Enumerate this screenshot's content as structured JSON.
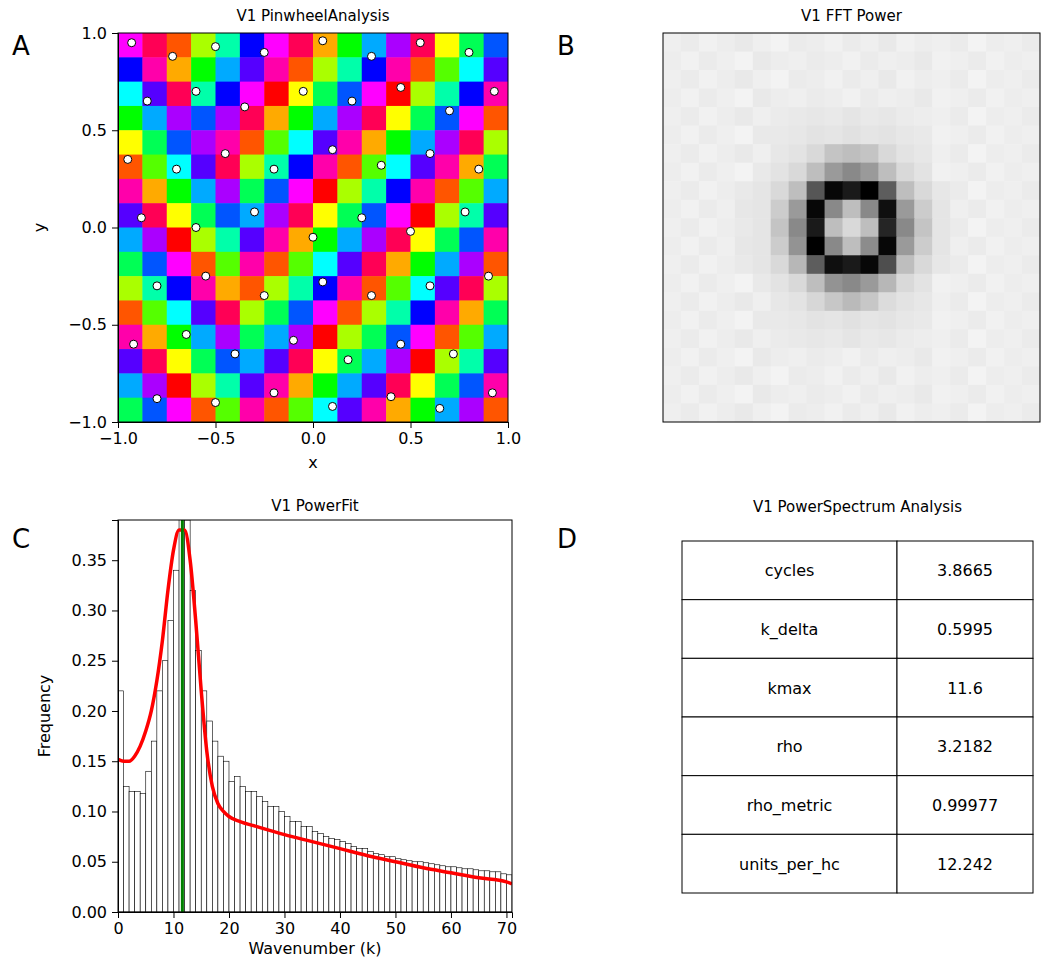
{
  "chart_data": [
    {
      "type": "heatmap",
      "label": "A",
      "title": "V1 PinwheelAnalysis",
      "x_label": "x",
      "y_label": "y",
      "xlim": [
        -1,
        1
      ],
      "ylim": [
        -1,
        1
      ],
      "xticks": [
        {
          "value": -1,
          "label": "−1.0"
        },
        {
          "value": -0.5,
          "label": "−0.5"
        },
        {
          "value": 0,
          "label": "0.0"
        },
        {
          "value": 0.5,
          "label": "0.5"
        },
        {
          "value": 1,
          "label": "1.0"
        }
      ],
      "yticks": [
        {
          "value": -1,
          "label": "−1.0"
        },
        {
          "value": -0.5,
          "label": "−0.5"
        },
        {
          "value": 0,
          "label": "0.0"
        },
        {
          "value": 0.5,
          "label": "0.5"
        },
        {
          "value": 1,
          "label": "1.0"
        }
      ],
      "zlim": [
        0,
        180
      ],
      "cells": [
        [
          150,
          170,
          10,
          40,
          80,
          120,
          150,
          170,
          20,
          60,
          100,
          140,
          170,
          30,
          70,
          110
        ],
        [
          120,
          160,
          20,
          60,
          100,
          130,
          160,
          10,
          40,
          80,
          120,
          160,
          10,
          50,
          90,
          130
        ],
        [
          90,
          130,
          170,
          80,
          120,
          150,
          0,
          30,
          70,
          110,
          150,
          0,
          40,
          80,
          120,
          160
        ],
        [
          60,
          100,
          140,
          110,
          140,
          170,
          20,
          60,
          100,
          140,
          170,
          30,
          70,
          110,
          150,
          10
        ],
        [
          30,
          70,
          110,
          140,
          160,
          10,
          50,
          90,
          130,
          160,
          20,
          60,
          100,
          140,
          170,
          40
        ],
        [
          10,
          50,
          90,
          130,
          170,
          40,
          80,
          120,
          160,
          10,
          50,
          90,
          130,
          160,
          20,
          70
        ],
        [
          160,
          20,
          60,
          100,
          140,
          70,
          110,
          150,
          0,
          40,
          80,
          120,
          160,
          10,
          50,
          100
        ],
        [
          130,
          170,
          30,
          70,
          110,
          100,
          140,
          170,
          30,
          70,
          110,
          150,
          0,
          40,
          80,
          130
        ],
        [
          100,
          140,
          0,
          40,
          80,
          130,
          160,
          20,
          60,
          100,
          140,
          170,
          30,
          70,
          110,
          160
        ],
        [
          70,
          110,
          150,
          10,
          50,
          160,
          10,
          50,
          90,
          130,
          170,
          20,
          60,
          100,
          140,
          10
        ],
        [
          40,
          80,
          120,
          160,
          20,
          10,
          40,
          80,
          120,
          160,
          10,
          50,
          90,
          130,
          170,
          40
        ],
        [
          10,
          50,
          90,
          130,
          170,
          40,
          70,
          110,
          150,
          10,
          40,
          80,
          120,
          160,
          20,
          70
        ],
        [
          160,
          20,
          60,
          100,
          140,
          70,
          100,
          140,
          0,
          40,
          70,
          110,
          150,
          10,
          50,
          100
        ],
        [
          130,
          170,
          30,
          70,
          110,
          100,
          130,
          170,
          30,
          70,
          100,
          140,
          0,
          40,
          80,
          130
        ],
        [
          100,
          140,
          0,
          40,
          80,
          130,
          160,
          20,
          60,
          100,
          130,
          170,
          30,
          70,
          110,
          160
        ],
        [
          70,
          110,
          150,
          10,
          50,
          160,
          10,
          50,
          90,
          130,
          160,
          20,
          60,
          100,
          140,
          10
        ]
      ],
      "pinwheels": [
        [
          -0.93,
          0.95
        ],
        [
          -0.72,
          0.88
        ],
        [
          -0.5,
          0.93
        ],
        [
          -0.25,
          0.9
        ],
        [
          0.05,
          0.96
        ],
        [
          0.3,
          0.88
        ],
        [
          0.55,
          0.95
        ],
        [
          0.8,
          0.9
        ],
        [
          -0.85,
          0.65
        ],
        [
          -0.6,
          0.7
        ],
        [
          -0.35,
          0.62
        ],
        [
          -0.05,
          0.7
        ],
        [
          0.2,
          0.65
        ],
        [
          0.45,
          0.72
        ],
        [
          0.7,
          0.6
        ],
        [
          0.93,
          0.7
        ],
        [
          -0.95,
          0.35
        ],
        [
          -0.7,
          0.3
        ],
        [
          -0.45,
          0.38
        ],
        [
          -0.2,
          0.3
        ],
        [
          0.1,
          0.4
        ],
        [
          0.35,
          0.32
        ],
        [
          0.6,
          0.38
        ],
        [
          0.85,
          0.3
        ],
        [
          -0.88,
          0.05
        ],
        [
          -0.6,
          0.0
        ],
        [
          -0.3,
          0.08
        ],
        [
          0.0,
          -0.05
        ],
        [
          0.25,
          0.05
        ],
        [
          0.5,
          -0.02
        ],
        [
          0.78,
          0.08
        ],
        [
          -0.8,
          -0.3
        ],
        [
          -0.55,
          -0.25
        ],
        [
          -0.25,
          -0.35
        ],
        [
          0.05,
          -0.28
        ],
        [
          0.3,
          -0.35
        ],
        [
          0.6,
          -0.3
        ],
        [
          0.9,
          -0.25
        ],
        [
          -0.92,
          -0.6
        ],
        [
          -0.65,
          -0.55
        ],
        [
          -0.4,
          -0.65
        ],
        [
          -0.1,
          -0.58
        ],
        [
          0.18,
          -0.68
        ],
        [
          0.45,
          -0.6
        ],
        [
          0.72,
          -0.65
        ],
        [
          -0.8,
          -0.88
        ],
        [
          -0.5,
          -0.9
        ],
        [
          -0.2,
          -0.85
        ],
        [
          0.1,
          -0.92
        ],
        [
          0.4,
          -0.87
        ],
        [
          0.65,
          -0.93
        ],
        [
          0.92,
          -0.85
        ]
      ]
    },
    {
      "type": "heatmap",
      "label": "B",
      "title": "V1 FFT Power",
      "tick_labels": false,
      "cells": [
        [
          0.1,
          0.12,
          0.09,
          0.11,
          0.13,
          0.1,
          0.08,
          0.12,
          0.11,
          0.09,
          0.12,
          0.1,
          0.13,
          0.09,
          0.11,
          0.1,
          0.12,
          0.08,
          0.11,
          0.1,
          0.12
        ],
        [
          0.11,
          0.09,
          0.12,
          0.1,
          0.08,
          0.13,
          0.11,
          0.1,
          0.12,
          0.11,
          0.09,
          0.12,
          0.1,
          0.11,
          0.13,
          0.09,
          0.1,
          0.12,
          0.09,
          0.11,
          0.1
        ],
        [
          0.1,
          0.12,
          0.09,
          0.11,
          0.13,
          0.1,
          0.08,
          0.12,
          0.11,
          0.09,
          0.12,
          0.1,
          0.13,
          0.09,
          0.11,
          0.1,
          0.12,
          0.08,
          0.11,
          0.1,
          0.12
        ],
        [
          0.11,
          0.09,
          0.12,
          0.1,
          0.08,
          0.13,
          0.11,
          0.1,
          0.12,
          0.11,
          0.09,
          0.12,
          0.1,
          0.11,
          0.13,
          0.09,
          0.1,
          0.12,
          0.09,
          0.11,
          0.1
        ],
        [
          0.1,
          0.12,
          0.09,
          0.11,
          0.13,
          0.1,
          0.12,
          0.13,
          0.14,
          0.13,
          0.15,
          0.13,
          0.14,
          0.12,
          0.11,
          0.1,
          0.12,
          0.08,
          0.11,
          0.1,
          0.12
        ],
        [
          0.11,
          0.09,
          0.12,
          0.1,
          0.08,
          0.13,
          0.13,
          0.14,
          0.16,
          0.15,
          0.17,
          0.15,
          0.16,
          0.14,
          0.13,
          0.09,
          0.1,
          0.12,
          0.09,
          0.11,
          0.1
        ],
        [
          0.1,
          0.12,
          0.09,
          0.11,
          0.13,
          0.1,
          0.14,
          0.16,
          0.2,
          0.28,
          0.3,
          0.28,
          0.2,
          0.16,
          0.14,
          0.1,
          0.12,
          0.08,
          0.11,
          0.1,
          0.12
        ],
        [
          0.11,
          0.09,
          0.12,
          0.1,
          0.08,
          0.13,
          0.16,
          0.2,
          0.3,
          0.4,
          0.45,
          0.4,
          0.3,
          0.2,
          0.16,
          0.09,
          0.1,
          0.12,
          0.09,
          0.11,
          0.1
        ],
        [
          0.1,
          0.12,
          0.09,
          0.11,
          0.13,
          0.15,
          0.2,
          0.3,
          0.6,
          0.8,
          0.75,
          0.82,
          0.58,
          0.3,
          0.2,
          0.14,
          0.12,
          0.08,
          0.11,
          0.1,
          0.12
        ],
        [
          0.11,
          0.09,
          0.12,
          0.1,
          0.14,
          0.15,
          0.25,
          0.4,
          0.8,
          0.45,
          0.3,
          0.45,
          0.78,
          0.4,
          0.25,
          0.15,
          0.1,
          0.12,
          0.09,
          0.11,
          0.1
        ],
        [
          0.1,
          0.12,
          0.09,
          0.11,
          0.13,
          0.15,
          0.28,
          0.45,
          0.75,
          0.3,
          0.2,
          0.3,
          0.72,
          0.45,
          0.28,
          0.15,
          0.12,
          0.08,
          0.11,
          0.1,
          0.12
        ],
        [
          0.11,
          0.09,
          0.12,
          0.1,
          0.14,
          0.15,
          0.25,
          0.42,
          0.82,
          0.45,
          0.3,
          0.44,
          0.8,
          0.4,
          0.25,
          0.15,
          0.1,
          0.12,
          0.09,
          0.11,
          0.1
        ],
        [
          0.1,
          0.12,
          0.09,
          0.11,
          0.13,
          0.15,
          0.2,
          0.32,
          0.58,
          0.78,
          0.75,
          0.8,
          0.62,
          0.3,
          0.2,
          0.14,
          0.12,
          0.08,
          0.11,
          0.1,
          0.12
        ],
        [
          0.11,
          0.09,
          0.12,
          0.1,
          0.08,
          0.13,
          0.16,
          0.2,
          0.3,
          0.42,
          0.45,
          0.4,
          0.32,
          0.2,
          0.16,
          0.09,
          0.1,
          0.12,
          0.09,
          0.11,
          0.1
        ],
        [
          0.1,
          0.12,
          0.09,
          0.11,
          0.13,
          0.1,
          0.14,
          0.16,
          0.21,
          0.27,
          0.31,
          0.27,
          0.19,
          0.16,
          0.14,
          0.1,
          0.12,
          0.08,
          0.11,
          0.1,
          0.12
        ],
        [
          0.11,
          0.09,
          0.12,
          0.1,
          0.08,
          0.13,
          0.13,
          0.14,
          0.16,
          0.15,
          0.17,
          0.15,
          0.16,
          0.14,
          0.13,
          0.09,
          0.1,
          0.12,
          0.09,
          0.11,
          0.1
        ],
        [
          0.1,
          0.12,
          0.09,
          0.11,
          0.13,
          0.1,
          0.12,
          0.13,
          0.14,
          0.13,
          0.15,
          0.13,
          0.14,
          0.12,
          0.11,
          0.1,
          0.12,
          0.08,
          0.11,
          0.1,
          0.12
        ],
        [
          0.11,
          0.09,
          0.12,
          0.1,
          0.08,
          0.13,
          0.11,
          0.1,
          0.12,
          0.11,
          0.09,
          0.12,
          0.1,
          0.11,
          0.13,
          0.09,
          0.1,
          0.12,
          0.09,
          0.11,
          0.1
        ],
        [
          0.1,
          0.12,
          0.09,
          0.11,
          0.13,
          0.1,
          0.08,
          0.12,
          0.11,
          0.09,
          0.12,
          0.1,
          0.13,
          0.09,
          0.11,
          0.1,
          0.12,
          0.08,
          0.11,
          0.1,
          0.12
        ],
        [
          0.11,
          0.09,
          0.12,
          0.1,
          0.08,
          0.13,
          0.11,
          0.1,
          0.12,
          0.11,
          0.09,
          0.12,
          0.1,
          0.11,
          0.13,
          0.09,
          0.1,
          0.12,
          0.09,
          0.11,
          0.1
        ],
        [
          0.1,
          0.12,
          0.09,
          0.11,
          0.13,
          0.1,
          0.08,
          0.12,
          0.11,
          0.09,
          0.12,
          0.1,
          0.13,
          0.09,
          0.11,
          0.1,
          0.12,
          0.08,
          0.11,
          0.1,
          0.12
        ]
      ]
    },
    {
      "type": "histogram",
      "label": "C",
      "title": "V1 PowerFit",
      "x_label": "Wavenumber (k)",
      "y_label": "Frequency",
      "color": "#ffffff",
      "xlim": [
        0,
        71
      ],
      "ylim": [
        0,
        0.39
      ],
      "xticks": [
        0,
        10,
        20,
        30,
        40,
        50,
        60,
        70
      ],
      "yticks": [
        {
          "value": 0,
          "label": "0.00"
        },
        {
          "value": 0.05,
          "label": "0.05"
        },
        {
          "value": 0.1,
          "label": "0.10"
        },
        {
          "value": 0.15,
          "label": "0.15"
        },
        {
          "value": 0.2,
          "label": "0.20"
        },
        {
          "value": 0.25,
          "label": "0.25"
        },
        {
          "value": 0.3,
          "label": "0.30"
        },
        {
          "value": 0.35,
          "label": "0.35"
        }
      ],
      "bins": [
        0,
        1,
        2,
        3,
        4,
        5,
        6,
        7,
        8,
        9,
        10,
        11,
        12,
        13,
        14,
        15,
        16,
        17,
        18,
        19,
        20,
        21,
        22,
        23,
        24,
        25,
        26,
        27,
        28,
        29,
        30,
        31,
        32,
        33,
        34,
        35,
        36,
        37,
        38,
        39,
        40,
        41,
        42,
        43,
        44,
        45,
        46,
        47,
        48,
        49,
        50,
        51,
        52,
        53,
        54,
        55,
        56,
        57,
        58,
        59,
        60,
        61,
        62,
        63,
        64,
        65,
        66,
        67,
        68,
        69,
        70,
        71
      ],
      "counts": [
        0.22,
        0.125,
        0.12,
        0.12,
        0.118,
        0.14,
        0.17,
        0.22,
        0.25,
        0.29,
        0.34,
        0.4,
        0.39,
        0.32,
        0.26,
        0.22,
        0.19,
        0.17,
        0.155,
        0.15,
        0.13,
        0.135,
        0.125,
        0.12,
        0.12,
        0.115,
        0.11,
        0.105,
        0.105,
        0.1,
        0.095,
        0.09,
        0.09,
        0.085,
        0.085,
        0.08,
        0.078,
        0.075,
        0.073,
        0.072,
        0.07,
        0.068,
        0.065,
        0.063,
        0.063,
        0.06,
        0.058,
        0.057,
        0.055,
        0.055,
        0.053,
        0.052,
        0.051,
        0.05,
        0.05,
        0.049,
        0.048,
        0.047,
        0.046,
        0.045,
        0.045,
        0.044,
        0.043,
        0.043,
        0.042,
        0.041,
        0.041,
        0.04,
        0.04,
        0.038,
        0.037
      ],
      "fit": {
        "type": "line",
        "color": "#ff0000",
        "x": [
          0,
          1,
          2,
          3,
          4,
          5,
          6,
          7,
          8,
          9,
          10,
          11,
          12,
          13,
          14,
          15,
          16,
          17,
          18,
          19,
          20,
          22,
          25,
          30,
          35,
          40,
          45,
          50,
          55,
          60,
          65,
          70,
          71
        ],
        "values": [
          0.152,
          0.15,
          0.15,
          0.155,
          0.165,
          0.18,
          0.2,
          0.23,
          0.27,
          0.32,
          0.36,
          0.38,
          0.38,
          0.35,
          0.29,
          0.22,
          0.16,
          0.125,
          0.108,
          0.1,
          0.095,
          0.09,
          0.085,
          0.077,
          0.07,
          0.063,
          0.056,
          0.05,
          0.044,
          0.039,
          0.034,
          0.03,
          0.028
        ]
      },
      "peak": {
        "type": "vline",
        "color": "#008000",
        "x": 11.6
      }
    },
    {
      "type": "table",
      "label": "D",
      "title": "V1 PowerSpectrum Analysis",
      "rows": [
        [
          "cycles",
          3.8665
        ],
        [
          "k_delta",
          0.5995
        ],
        [
          "kmax",
          11.6
        ],
        [
          "rho",
          3.2182
        ],
        [
          "rho_metric",
          0.99977
        ],
        [
          "units_per_hc",
          12.242
        ]
      ]
    }
  ]
}
